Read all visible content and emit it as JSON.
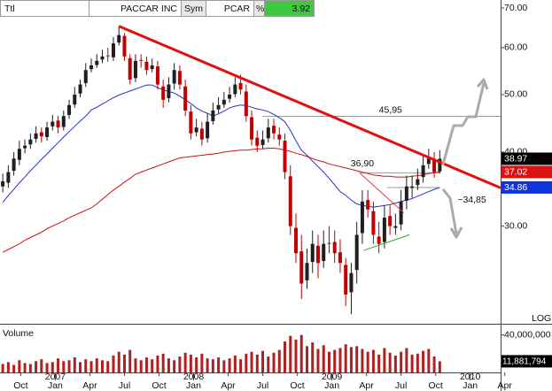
{
  "header": {
    "field": "Ttl",
    "name": "PACCAR INC",
    "sym_label": "Sym",
    "symbol": "PCAR",
    "pct_label": "%",
    "pct_value": 3.92
  },
  "chart_data": [
    {
      "type": "candlestick",
      "log_scale": true,
      "scale_label": "LOG",
      "xlim": [
        2006.6,
        2010.22
      ],
      "ylim": [
        20.6,
        72.2
      ],
      "yticks": [
        {
          "value": 30,
          "label": "30.00"
        },
        {
          "value": 40,
          "label": "40.00"
        },
        {
          "value": 50,
          "label": "50.00"
        },
        {
          "value": 60,
          "label": "60.00"
        },
        {
          "value": 70,
          "label": "70.00"
        }
      ],
      "up_color": "#1f1f1f",
      "down_color": "#c00000",
      "x": [
        2006.62,
        2006.66,
        2006.7,
        2006.74,
        2006.78,
        2006.82,
        2006.86,
        2006.9,
        2006.94,
        2006.98,
        2007.02,
        2007.06,
        2007.1,
        2007.14,
        2007.18,
        2007.22,
        2007.26,
        2007.3,
        2007.34,
        2007.38,
        2007.42,
        2007.46,
        2007.5,
        2007.54,
        2007.58,
        2007.62,
        2007.66,
        2007.7,
        2007.74,
        2007.78,
        2007.82,
        2007.86,
        2007.9,
        2007.94,
        2007.98,
        2008.02,
        2008.06,
        2008.1,
        2008.14,
        2008.18,
        2008.22,
        2008.26,
        2008.3,
        2008.34,
        2008.38,
        2008.42,
        2008.46,
        2008.5,
        2008.54,
        2008.58,
        2008.62,
        2008.66,
        2008.7,
        2008.74,
        2008.78,
        2008.82,
        2008.86,
        2008.9,
        2008.94,
        2008.98,
        2009.02,
        2009.06,
        2009.1,
        2009.14,
        2009.18,
        2009.22,
        2009.26,
        2009.3,
        2009.34,
        2009.38,
        2009.42,
        2009.46,
        2009.5,
        2009.54,
        2009.58,
        2009.62,
        2009.66,
        2009.7,
        2009.74,
        2009.78
      ],
      "open": [
        35,
        35.5,
        37.2,
        38.8,
        40.6,
        41.2,
        42.1,
        43.2,
        42.4,
        44.2,
        45.2,
        44.1,
        46.2,
        48.1,
        50.2,
        52.3,
        55.2,
        56.1,
        57.3,
        58.2,
        57.8,
        61.2,
        62.8,
        57.6,
        53.3,
        57.2,
        56.8,
        55.2,
        55.8,
        51.6,
        49.3,
        52.2,
        54.8,
        51.6,
        46.8,
        43.2,
        43.8,
        42.2,
        45.1,
        47.2,
        48.1,
        49.2,
        50.1,
        52.3,
        50.6,
        45.8,
        42.3,
        41.1,
        42.2,
        44.3,
        42.8,
        41.8,
        36.4,
        29.8,
        27.2,
        24.3,
        26.1,
        27.8,
        26.2,
        28.1,
        28.2,
        27.1,
        25.8,
        23.2,
        25.3,
        29.2,
        33.2,
        31.8,
        28.8,
        28.2,
        31.2,
        29.8,
        30.2,
        33.1,
        34.8,
        35.2,
        36.3,
        38.2,
        38.8,
        37.1
      ],
      "high": [
        36.8,
        38,
        40,
        41.8,
        42,
        43,
        44.2,
        44,
        45,
        46.2,
        46,
        47,
        49,
        51.5,
        53,
        56.5,
        57.5,
        58.5,
        59.5,
        60,
        62.5,
        65.2,
        63.5,
        58.5,
        58.5,
        58.5,
        58,
        57.5,
        57,
        53,
        53.5,
        56.5,
        56,
        53,
        48,
        45.5,
        45,
        46.5,
        48.5,
        49.5,
        50.5,
        51.5,
        53.5,
        54,
        52,
        47,
        43.5,
        43.5,
        45.5,
        45.5,
        44,
        43,
        38,
        31.5,
        29,
        27.5,
        29.5,
        29,
        29.5,
        30,
        29.5,
        28.5,
        26.5,
        26,
        30.5,
        34.5,
        34.5,
        33,
        30.5,
        32.5,
        32.5,
        31.5,
        34.5,
        36.5,
        36.5,
        37.5,
        39.5,
        40.5,
        40,
        40.3
      ],
      "low": [
        34.2,
        34.8,
        36.5,
        38,
        39.8,
        40.5,
        41.5,
        41.5,
        41.8,
        43.5,
        43,
        43.5,
        45.5,
        47.5,
        49.5,
        51.5,
        54.5,
        55.5,
        56.5,
        56.8,
        57,
        60.5,
        57,
        52,
        52.5,
        55.5,
        54,
        54.5,
        51,
        47.5,
        48.5,
        51,
        51,
        46,
        42,
        42.5,
        41,
        41.5,
        44.5,
        46.5,
        47.5,
        48.5,
        49.5,
        50,
        45,
        41,
        40,
        40.5,
        41.5,
        42,
        41,
        36,
        29,
        26,
        22.6,
        23.5,
        25,
        24.5,
        25.5,
        27,
        26,
        25,
        22,
        21.3,
        24,
        28,
        31,
        28,
        27,
        27.5,
        29,
        29,
        29.5,
        32,
        33.5,
        34.5,
        35.5,
        37.5,
        36.2,
        36.8
      ],
      "close": [
        35.7,
        37,
        39,
        40.5,
        41,
        42,
        43,
        42.5,
        44,
        45,
        44,
        46,
        48,
        50,
        52,
        55,
        56,
        57,
        58,
        58,
        61,
        63,
        58,
        53,
        57,
        57,
        55,
        56,
        52,
        49,
        52,
        55,
        52,
        47,
        43,
        44,
        42,
        45,
        47,
        48,
        49,
        50,
        52,
        51,
        46,
        42,
        41,
        42,
        44,
        43,
        42,
        37,
        30,
        27,
        24,
        26,
        28,
        26,
        28,
        28,
        27,
        26,
        23,
        25,
        29,
        33,
        32,
        29,
        28,
        31,
        30,
        30,
        33,
        35,
        35,
        36,
        38,
        39,
        37,
        38.97
      ],
      "moving_averages": [
        {
          "color": "#2233cc",
          "values": [
            32.9,
            33.8,
            34.6,
            35.5,
            36.3,
            37.2,
            38.0,
            38.9,
            39.7,
            40.6,
            41.5,
            42.4,
            43.3,
            44.2,
            45.1,
            46.0,
            47.1,
            47.6,
            48.2,
            48.8,
            49.4,
            49.9,
            50.3,
            50.7,
            51.1,
            51.5,
            51.9,
            51.9,
            51.4,
            50.9,
            50.6,
            50.3,
            49.7,
            49.0,
            48.3,
            47.5,
            46.9,
            46.5,
            46.0,
            46.4,
            46.9,
            47.5,
            47.8,
            48.0,
            47.9,
            47.6,
            47.3,
            47.1,
            46.8,
            46.3,
            45.7,
            45.0,
            43.5,
            41.8,
            40.3,
            39.5,
            38.6,
            37.8,
            37.0,
            36.1,
            35.2,
            34.3,
            33.8,
            33.2,
            32.7,
            32.5,
            32.4,
            32.3,
            32.4,
            32.5,
            32.6,
            32.8,
            33.0,
            33.2,
            33.4,
            33.7,
            34.0,
            34.3,
            34.6,
            34.86
          ]
        },
        {
          "color": "#cc1111",
          "values": [
            27.1,
            27.4,
            27.7,
            28.0,
            28.4,
            28.7,
            29.0,
            29.3,
            29.7,
            30.0,
            30.3,
            30.6,
            31.0,
            31.3,
            31.6,
            31.9,
            32.2,
            32.7,
            33.3,
            33.9,
            34.5,
            35.0,
            35.6,
            36.1,
            36.7,
            37.0,
            37.3,
            37.6,
            37.9,
            38.2,
            38.5,
            38.8,
            39.1,
            39.2,
            39.3,
            39.4,
            39.5,
            39.6,
            39.7,
            39.8,
            40.0,
            40.1,
            40.2,
            40.3,
            40.3,
            40.4,
            40.5,
            40.5,
            40.6,
            40.6,
            40.5,
            40.3,
            40.1,
            39.8,
            39.6,
            39.3,
            39.0,
            38.7,
            38.5,
            38.2,
            38.0,
            37.8,
            37.6,
            37.4,
            37.2,
            37.0,
            36.8,
            36.6,
            36.5,
            36.4,
            36.4,
            36.3,
            36.3,
            36.3,
            36.4,
            36.5,
            36.6,
            36.8,
            36.9,
            37.02
          ]
        }
      ],
      "price_tags": [
        {
          "value": 38.97,
          "color": "#000000"
        },
        {
          "value": 37.02,
          "color": "#dd1111"
        },
        {
          "value": 34.86,
          "color": "#1133dd"
        }
      ],
      "trendlines": [
        {
          "color": "#e01010",
          "x": [
            2007.46,
            2010.22
          ],
          "y": [
            65.2,
            34.8
          ]
        },
        {
          "color": "#e04040",
          "x": [
            2009.2,
            2009.52
          ],
          "y": [
            36.9,
            31.6
          ]
        },
        {
          "color": "#22aa22",
          "x": [
            2009.23,
            2009.56
          ],
          "y": [
            27.3,
            29.0
          ]
        }
      ],
      "levels": [
        {
          "value": 45.95,
          "label": "45,95",
          "x": [
            2008.5,
            2010.22
          ]
        },
        {
          "value": 36.9,
          "label": "36,90",
          "x": [
            2009.2,
            2009.78
          ]
        },
        {
          "value": 34.85,
          "label": "~34,85",
          "x": [
            2009.4,
            2009.78
          ]
        }
      ]
    },
    {
      "type": "volume",
      "title": "Volume",
      "color": "#b02020",
      "ylim": [
        0,
        50000000
      ],
      "yticks": [
        {
          "value": 40000000,
          "label": "40,000,000"
        }
      ],
      "last_tag": {
        "value": 11881794,
        "label": "11,881,794",
        "color": "#000000"
      },
      "values": [
        9000000.0,
        11000000.0,
        8000000.0,
        13000000.0,
        10000000.0,
        9000000.0,
        12000000.0,
        14000000.0,
        10000000.0,
        11000000.0,
        15000000.0,
        12000000.0,
        13000000.0,
        16000000.0,
        11000000.0,
        14000000.0,
        12000000.0,
        15000000.0,
        13000000.0,
        12000000.0,
        18000000.0,
        22000000.0,
        19000000.0,
        24000000.0,
        15000000.0,
        13000000.0,
        16000000.0,
        14000000.0,
        18000000.0,
        20000000.0,
        15000000.0,
        13000000.0,
        17000000.0,
        21000000.0,
        19000000.0,
        16000000.0,
        20000000.0,
        15000000.0,
        14000000.0,
        16000000.0,
        13000000.0,
        15000000.0,
        18000000.0,
        14000000.0,
        20000000.0,
        22000000.0,
        19000000.0,
        23000000.0,
        17000000.0,
        21000000.0,
        24000000.0,
        33000000.0,
        39000000.0,
        35000000.0,
        40000000.0,
        28000000.0,
        32000000.0,
        25000000.0,
        29000000.0,
        22000000.0,
        24000000.0,
        26000000.0,
        30000000.0,
        27000000.0,
        28000000.0,
        25000000.0,
        22000000.0,
        24000000.0,
        19000000.0,
        26000000.0,
        21000000.0,
        18000000.0,
        22000000.0,
        26000000.0,
        19000000.0,
        20000000.0,
        23000000.0,
        25000000.0,
        17000000.0,
        11881794
      ],
      "xticks": [
        {
          "value": 2006.75,
          "label": "Oct"
        },
        {
          "value": 2007.0,
          "label": "Jan"
        },
        {
          "value": 2007.25,
          "label": "Apr"
        },
        {
          "value": 2007.5,
          "label": "Jul"
        },
        {
          "value": 2007.75,
          "label": "Oct"
        },
        {
          "value": 2008.0,
          "label": "Jan"
        },
        {
          "value": 2008.25,
          "label": "Apr"
        },
        {
          "value": 2008.5,
          "label": "Jul"
        },
        {
          "value": 2008.75,
          "label": "Oct"
        },
        {
          "value": 2009.0,
          "label": "Jan"
        },
        {
          "value": 2009.25,
          "label": "Apr"
        },
        {
          "value": 2009.5,
          "label": "Jul"
        },
        {
          "value": 2009.75,
          "label": "Oct"
        },
        {
          "value": 2010.0,
          "label": "Jan"
        },
        {
          "value": 2010.25,
          "label": "Apr"
        }
      ],
      "year_ticks": [
        {
          "value": 2007.0,
          "label": "2007"
        },
        {
          "value": 2008.0,
          "label": "2008"
        },
        {
          "value": 2009.0,
          "label": "2009"
        },
        {
          "value": 2010.0,
          "label": "2010"
        }
      ]
    }
  ]
}
